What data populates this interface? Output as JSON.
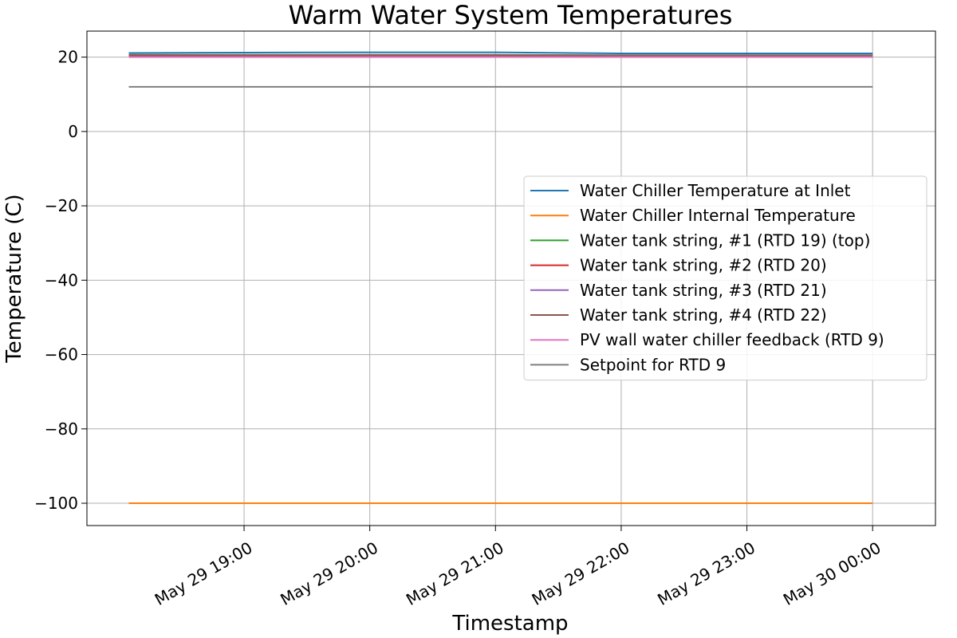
{
  "chart_data": {
    "type": "line",
    "title": "Warm Water System Temperatures",
    "xlabel": "Timestamp",
    "ylabel": "Temperature (C)",
    "xlim": [
      "2023-05-29 17:45",
      "2023-05-30 00:30"
    ],
    "ylim": [
      -106,
      27
    ],
    "x_ticks": [
      {
        "value": "2023-05-29 19:00",
        "label": "May 29 19:00"
      },
      {
        "value": "2023-05-29 20:00",
        "label": "May 29 20:00"
      },
      {
        "value": "2023-05-29 21:00",
        "label": "May 29 21:00"
      },
      {
        "value": "2023-05-29 22:00",
        "label": "May 29 22:00"
      },
      {
        "value": "2023-05-29 23:00",
        "label": "May 29 23:00"
      },
      {
        "value": "2023-05-30 00:00",
        "label": "May 30 00:00"
      }
    ],
    "y_ticks": [
      {
        "value": 20,
        "label": "20"
      },
      {
        "value": 0,
        "label": "0"
      },
      {
        "value": -20,
        "label": "−20"
      },
      {
        "value": -40,
        "label": "−40"
      },
      {
        "value": -60,
        "label": "−60"
      },
      {
        "value": -80,
        "label": "−80"
      },
      {
        "value": -100,
        "label": "−100"
      }
    ],
    "grid": true,
    "legend_position": "center-right",
    "x": [
      "2023-05-29 18:05",
      "2023-05-29 19:00",
      "2023-05-29 20:00",
      "2023-05-29 21:00",
      "2023-05-29 22:00",
      "2023-05-29 23:00",
      "2023-05-30 00:00"
    ],
    "series": [
      {
        "name": "Water Chiller Temperature at Inlet",
        "color": "#1f77b4",
        "values": [
          21.1,
          21.2,
          21.3,
          21.3,
          21.0,
          21.0,
          21.0
        ]
      },
      {
        "name": "Water Chiller Internal Temperature",
        "color": "#ff7f0e",
        "values": [
          -100,
          -100,
          -100,
          -100,
          -100,
          -100,
          -100
        ]
      },
      {
        "name": "Water tank string, #1 (RTD 19) (top)",
        "color": "#2ca02c",
        "values": [
          20.6,
          20.6,
          20.6,
          20.6,
          20.5,
          20.5,
          20.5
        ]
      },
      {
        "name": "Water tank string, #2 (RTD 20)",
        "color": "#d62728",
        "values": [
          20.5,
          20.5,
          20.5,
          20.5,
          20.4,
          20.4,
          20.4
        ]
      },
      {
        "name": "Water tank string, #3 (RTD 21)",
        "color": "#9467bd",
        "values": [
          20.4,
          20.4,
          20.4,
          20.4,
          20.3,
          20.3,
          20.3
        ]
      },
      {
        "name": "Water tank string, #4 (RTD 22)",
        "color": "#8c564b",
        "values": [
          20.3,
          20.3,
          20.3,
          20.3,
          20.2,
          20.2,
          20.2
        ]
      },
      {
        "name": "PV wall water chiller feedback (RTD 9)",
        "color": "#e377c2",
        "values": [
          20.0,
          20.0,
          20.0,
          20.0,
          20.0,
          20.0,
          20.0
        ]
      },
      {
        "name": "Setpoint for RTD 9",
        "color": "#7f7f7f",
        "values": [
          12,
          12,
          12,
          12,
          12,
          12,
          12
        ]
      }
    ]
  }
}
